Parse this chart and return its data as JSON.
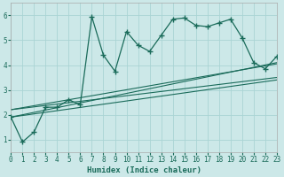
{
  "xlabel": "Humidex (Indice chaleur)",
  "bg_color": "#cce8e8",
  "line_color": "#1a6b5a",
  "grid_color": "#aad4d4",
  "main_line_x": [
    0,
    1,
    2,
    3,
    4,
    5,
    6,
    7,
    8,
    9,
    10,
    11,
    12,
    13,
    14,
    15,
    16,
    17,
    18,
    19,
    20,
    21,
    22,
    23
  ],
  "main_line_y": [
    1.9,
    0.9,
    1.3,
    2.3,
    2.3,
    2.6,
    2.4,
    5.95,
    4.4,
    3.75,
    5.35,
    4.8,
    4.55,
    5.2,
    5.85,
    5.9,
    5.6,
    5.55,
    5.7,
    5.85,
    5.1,
    4.1,
    3.85,
    4.35
  ],
  "trend_lines": [
    {
      "x": [
        0,
        23
      ],
      "y": [
        1.9,
        4.1
      ]
    },
    {
      "x": [
        0,
        23
      ],
      "y": [
        1.9,
        3.4
      ]
    },
    {
      "x": [
        0,
        23
      ],
      "y": [
        2.2,
        4.05
      ]
    },
    {
      "x": [
        0,
        23
      ],
      "y": [
        2.2,
        3.5
      ]
    }
  ],
  "xlim": [
    0,
    23
  ],
  "ylim": [
    0.5,
    6.5
  ],
  "yticks": [
    1,
    2,
    3,
    4,
    5,
    6
  ],
  "xticks": [
    0,
    1,
    2,
    3,
    4,
    5,
    6,
    7,
    8,
    9,
    10,
    11,
    12,
    13,
    14,
    15,
    16,
    17,
    18,
    19,
    20,
    21,
    22,
    23
  ],
  "xlabel_fontsize": 6.5,
  "tick_fontsize": 5.5
}
